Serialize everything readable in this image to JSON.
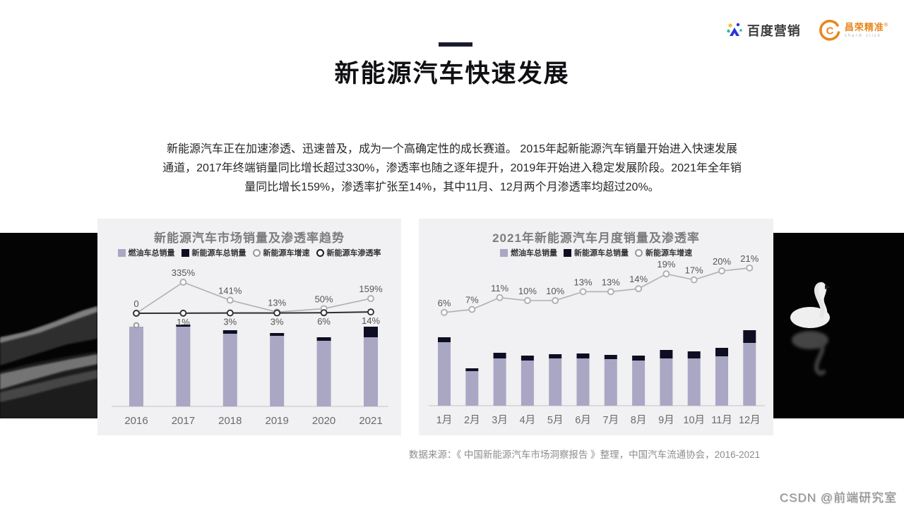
{
  "header": {
    "baidu_logo": {
      "label": "百度营销"
    },
    "changrong_logo": {
      "label": "昌荣精准",
      "reg_mark": "®",
      "sub": "charm click"
    }
  },
  "title": {
    "text": "新能源汽车快速发展"
  },
  "intro": {
    "lines": [
      "新能源汽车正在加速渗透、迅速普及，成为一个高确定性的成长赛道。 2015年起新能源汽车销量开始进入快速发展",
      "通道，2017年终端销量同比增长超过330%，渗透率也随之逐年提升，2019年开始进入稳定发展阶段。2021年全年销",
      "量同比增长159%，渗透率扩张至14%，其中11月、12月两个月渗透率均超过20%。"
    ]
  },
  "source": {
    "text": "数据来源：《 中国新能源汽车市场洞察报告 》整理，中国汽车流通协会，2016-2021"
  },
  "watermark": {
    "text": "CSDN @前端研究室"
  },
  "colors": {
    "fuel_bar": "#a9a7c4",
    "nev_bar": "#0e0e22",
    "growth_line": "#b1afaf",
    "penetration_line": "#2e2e33",
    "card_bg": "#f1f0f2",
    "chart_title_gray": "#7d7d7d",
    "changrong_orange": "#e8871e",
    "title_bar_navy": "#1b1b30"
  },
  "chart_data": [
    {
      "type": "bar",
      "title": "新能源汽车市场销量及渗透率趋势",
      "categories": [
        "2016",
        "2017",
        "2018",
        "2019",
        "2020",
        "2021"
      ],
      "legend_items": [
        {
          "label": "燃油车总销量",
          "swatch": "square",
          "color": "#a9a7c4"
        },
        {
          "label": "新能源车总销量",
          "swatch": "square",
          "color": "#0e0e22"
        },
        {
          "label": "新能源车增速",
          "swatch": "ring",
          "color": "#9a9a9a"
        },
        {
          "label": "新能源车渗透率",
          "swatch": "ring",
          "color": "#1c1c1c"
        }
      ],
      "series": [
        {
          "name": "燃油车总销量",
          "type": "bar",
          "unit": "px-estimated",
          "values": [
            113,
            113,
            103,
            100,
            93,
            98
          ]
        },
        {
          "name": "新能源车总销量",
          "type": "bar-cap",
          "unit": "px-estimated",
          "values": [
            0,
            3,
            5,
            4,
            5,
            15
          ]
        },
        {
          "name": "新能源车增速",
          "type": "line",
          "unit": "percent",
          "values": [
            0,
            335,
            141,
            13,
            50,
            159
          ],
          "labels": [
            "0",
            "335%",
            "141%",
            "13%",
            "50%",
            "159%"
          ],
          "label_side": "above"
        },
        {
          "name": "新能源车渗透率",
          "type": "line",
          "unit": "percent",
          "values": [
            0,
            1,
            3,
            3,
            6,
            14
          ],
          "labels": [
            "",
            "1%",
            "3%",
            "3%",
            "6%",
            "14%"
          ],
          "label_side": "below"
        }
      ],
      "axes": {
        "y_axis_labels": "none",
        "grid": "off",
        "legend_position": "top"
      }
    },
    {
      "type": "bar",
      "title": "2021年新能源汽车月度销量及渗透率",
      "categories": [
        "1月",
        "2月",
        "3月",
        "4月",
        "5月",
        "6月",
        "7月",
        "8月",
        "9月",
        "10月",
        "11月",
        "12月"
      ],
      "legend_items": [
        {
          "label": "燃油车总销量",
          "swatch": "square",
          "color": "#a9a7c4"
        },
        {
          "label": "新能源车总销量",
          "swatch": "square",
          "color": "#0e0e22"
        },
        {
          "label": "新能源车增速",
          "swatch": "ring",
          "color": "#9a9a9a"
        }
      ],
      "series": [
        {
          "name": "燃油车总销量",
          "type": "bar",
          "unit": "px-estimated",
          "values": [
            90,
            49,
            67,
            64,
            67,
            67,
            66,
            64,
            67,
            67,
            70,
            89
          ]
        },
        {
          "name": "新能源车总销量",
          "type": "bar-cap",
          "unit": "px-estimated",
          "values": [
            7,
            4,
            8,
            7,
            6,
            7,
            6,
            7,
            12,
            10,
            12,
            18
          ]
        },
        {
          "name": "新能源车增速",
          "type": "line",
          "unit": "percent",
          "values": [
            6,
            7,
            11,
            10,
            10,
            13,
            13,
            14,
            19,
            17,
            20,
            21
          ],
          "labels": [
            "6%",
            "7%",
            "11%",
            "10%",
            "10%",
            "13%",
            "13%",
            "14%",
            "19%",
            "17%",
            "20%",
            "21%"
          ],
          "label_side": "above"
        }
      ],
      "axes": {
        "y_axis_labels": "none",
        "grid": "off",
        "legend_position": "top"
      }
    }
  ]
}
